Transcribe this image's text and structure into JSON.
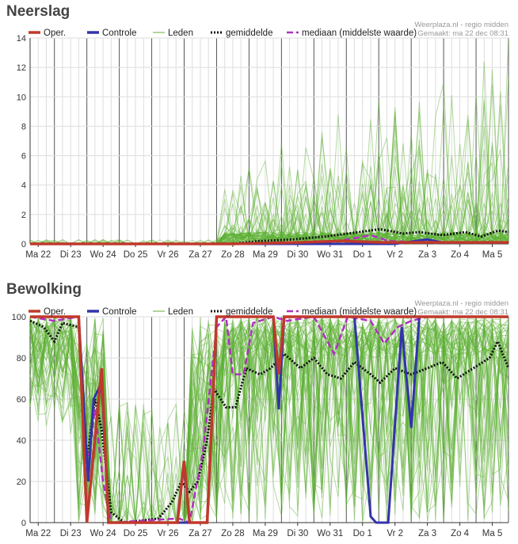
{
  "legend": {
    "oper": "Oper.",
    "controle": "Controle",
    "leden": "Leden",
    "gemiddelde": "gemiddelde",
    "mediaan": "mediaan (middelste waarde)"
  },
  "source": "Weerplaza.nl - regio midden",
  "made": "Gemaakt: ma 22 dec 08:31",
  "colors": {
    "oper": "#c0392b",
    "controle": "#3333aa",
    "leden": "#5cb030",
    "gemiddelde": "#111111",
    "mediaan": "#b030c0"
  },
  "chart_data": [
    {
      "type": "line",
      "title": "Neerslag",
      "ylim": [
        0,
        14
      ],
      "yticks": [
        "0",
        "2",
        "4",
        "6",
        "8",
        "10",
        "12",
        "14"
      ],
      "xlabels": [
        "Ma 22",
        "Di 23",
        "Wo 24",
        "Do 25",
        "Vr 26",
        "Za 27",
        "Zo 28",
        "Ma 29",
        "Di 30",
        "Wo 31",
        "Do 1",
        "Vr 2",
        "Za 3",
        "Zo 4",
        "Ma 5"
      ],
      "x_unit": "hours since start",
      "x_range": [
        0,
        354
      ],
      "series": {
        "oper": [
          [
            0,
            0
          ],
          [
            150,
            0
          ],
          [
            200,
            0.1
          ],
          [
            230,
            0.2
          ],
          [
            260,
            0.1
          ],
          [
            354,
            0.1
          ]
        ],
        "controle": [
          [
            0,
            0
          ],
          [
            270,
            0
          ],
          [
            285,
            0.2
          ],
          [
            294,
            0.3
          ],
          [
            305,
            0.1
          ],
          [
            354,
            0.1
          ]
        ],
        "gemiddelde": [
          [
            0,
            0
          ],
          [
            148,
            0
          ],
          [
            171,
            0.2
          ],
          [
            194,
            0.3
          ],
          [
            218,
            0.5
          ],
          [
            235,
            0.7
          ],
          [
            259,
            1.0
          ],
          [
            276,
            0.7
          ],
          [
            288,
            0.8
          ],
          [
            305,
            0.6
          ],
          [
            322,
            0.8
          ],
          [
            334,
            0.5
          ],
          [
            346,
            0.9
          ],
          [
            354,
            0.8
          ]
        ],
        "mediaan": [
          [
            0,
            0
          ],
          [
            210,
            0
          ],
          [
            235,
            0.3
          ],
          [
            252,
            0.6
          ],
          [
            265,
            0.2
          ],
          [
            290,
            0.1
          ],
          [
            354,
            0.1
          ]
        ]
      },
      "leden": {
        "members": 50,
        "seed": 7,
        "max": 11.6
      }
    },
    {
      "type": "line",
      "title": "Bewolking",
      "ylim": [
        0,
        100
      ],
      "yticks": [
        "0",
        "20",
        "40",
        "60",
        "80",
        "100"
      ],
      "xlabels": [
        "Ma 22",
        "Di 23",
        "Wo 24",
        "Do 25",
        "Vr 26",
        "Za 27",
        "Zo 28",
        "Ma 29",
        "Di 30",
        "Wo 31",
        "Do 1",
        "Vr 2",
        "Za 3",
        "Zo 4",
        "Ma 5"
      ],
      "x_unit": "hours since start",
      "x_range": [
        0,
        354
      ],
      "series": {
        "oper": [
          [
            0,
            100
          ],
          [
            36,
            100
          ],
          [
            42,
            0
          ],
          [
            53,
            75
          ],
          [
            58,
            0
          ],
          [
            109,
            0
          ],
          [
            114,
            30
          ],
          [
            118,
            0
          ],
          [
            131,
            0
          ],
          [
            138,
            100
          ],
          [
            180,
            100
          ],
          [
            184,
            72
          ],
          [
            188,
            100
          ],
          [
            354,
            100
          ]
        ],
        "controle": [
          [
            0,
            100
          ],
          [
            36,
            100
          ],
          [
            43,
            20
          ],
          [
            47,
            60
          ],
          [
            53,
            68
          ],
          [
            58,
            0
          ],
          [
            131,
            0
          ],
          [
            138,
            100
          ],
          [
            180,
            100
          ],
          [
            184,
            55
          ],
          [
            188,
            100
          ],
          [
            240,
            100
          ],
          [
            252,
            3
          ],
          [
            256,
            0
          ],
          [
            265,
            0
          ],
          [
            275,
            95
          ],
          [
            282,
            46
          ],
          [
            288,
            100
          ],
          [
            354,
            100
          ]
        ],
        "gemiddelde": [
          [
            0,
            98
          ],
          [
            10,
            95
          ],
          [
            18,
            88
          ],
          [
            24,
            97
          ],
          [
            36,
            95
          ],
          [
            42,
            30
          ],
          [
            48,
            60
          ],
          [
            53,
            45
          ],
          [
            60,
            5
          ],
          [
            70,
            0
          ],
          [
            95,
            2
          ],
          [
            105,
            10
          ],
          [
            112,
            20
          ],
          [
            118,
            15
          ],
          [
            124,
            20
          ],
          [
            131,
            40
          ],
          [
            136,
            65
          ],
          [
            145,
            56
          ],
          [
            152,
            56
          ],
          [
            160,
            75
          ],
          [
            170,
            72
          ],
          [
            178,
            75
          ],
          [
            188,
            82
          ],
          [
            200,
            75
          ],
          [
            210,
            80
          ],
          [
            220,
            72
          ],
          [
            230,
            70
          ],
          [
            240,
            78
          ],
          [
            252,
            72
          ],
          [
            259,
            68
          ],
          [
            270,
            75
          ],
          [
            282,
            72
          ],
          [
            294,
            75
          ],
          [
            305,
            78
          ],
          [
            316,
            70
          ],
          [
            328,
            75
          ],
          [
            340,
            80
          ],
          [
            346,
            88
          ],
          [
            354,
            75
          ]
        ],
        "mediaan": [
          [
            0,
            100
          ],
          [
            18,
            98
          ],
          [
            36,
            100
          ],
          [
            42,
            25
          ],
          [
            48,
            55
          ],
          [
            54,
            20
          ],
          [
            60,
            0
          ],
          [
            110,
            2
          ],
          [
            118,
            0
          ],
          [
            128,
            35
          ],
          [
            138,
            95
          ],
          [
            145,
            100
          ],
          [
            150,
            72
          ],
          [
            158,
            72
          ],
          [
            165,
            97
          ],
          [
            180,
            100
          ],
          [
            190,
            98
          ],
          [
            210,
            100
          ],
          [
            225,
            82
          ],
          [
            235,
            100
          ],
          [
            252,
            98
          ],
          [
            262,
            87
          ],
          [
            272,
            95
          ],
          [
            282,
            98
          ],
          [
            294,
            100
          ],
          [
            354,
            100
          ]
        ]
      },
      "leden": {
        "members": 50,
        "seed": 13
      }
    }
  ]
}
